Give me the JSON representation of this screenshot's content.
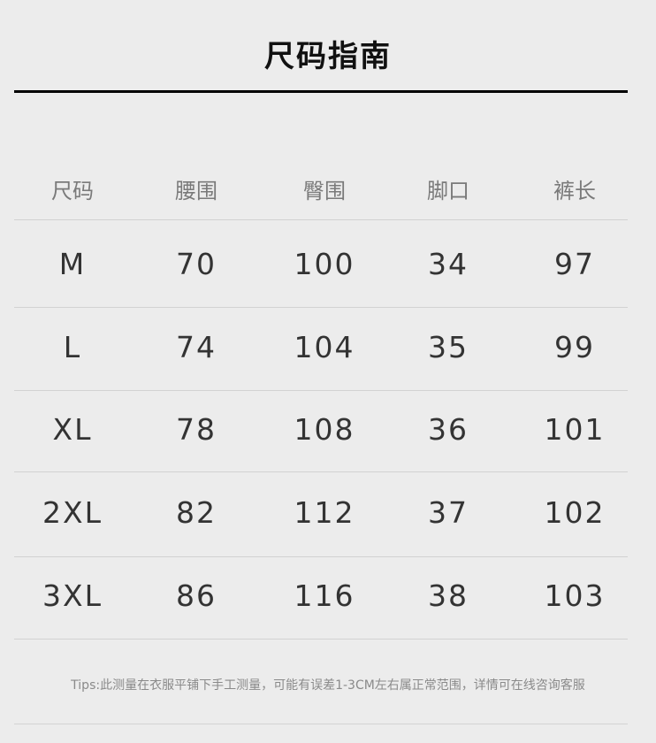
{
  "title": "尺码指南",
  "table": {
    "headers": [
      "尺码",
      "腰围",
      "臀围",
      "脚口",
      "裤长"
    ],
    "rows": [
      [
        "M",
        "70",
        "100",
        "34",
        "97"
      ],
      [
        "L",
        "74",
        "104",
        "35",
        "99"
      ],
      [
        "XL",
        "78",
        "108",
        "36",
        "101"
      ],
      [
        "2XL",
        "82",
        "112",
        "37",
        "102"
      ],
      [
        "3XL",
        "86",
        "116",
        "38",
        "103"
      ]
    ]
  },
  "tips": "Tips:此测量在衣服平铺下手工测量，可能有误差1-3CM左右属正常范围，详情可在线咨询客服"
}
